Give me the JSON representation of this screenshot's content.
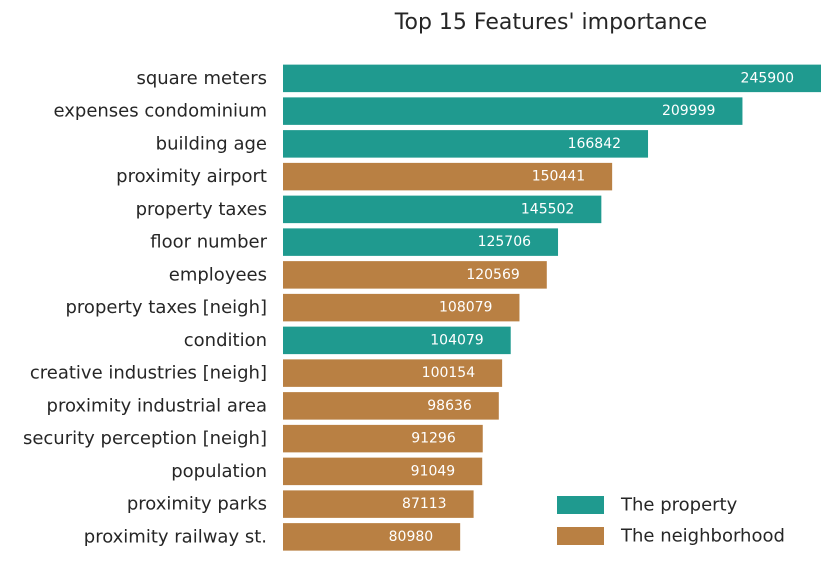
{
  "chart_data": {
    "type": "bar",
    "orientation": "horizontal",
    "title": "Top 15 Features' importance",
    "xlabel": "",
    "ylabel": "",
    "xlim": [
      0,
      245900
    ],
    "grid": false,
    "legend_position": "lower-right",
    "categories": [
      "square meters",
      "expenses condominium",
      "building age",
      "proximity airport",
      "property taxes",
      "floor number",
      "employees",
      "property taxes [neigh]",
      "condition",
      "creative industries [neigh]",
      "proximity industrial area",
      "security perception [neigh]",
      "population",
      "proximity parks",
      "proximity railway st."
    ],
    "values": [
      245900,
      209999,
      166842,
      150441,
      145502,
      125706,
      120569,
      108079,
      104079,
      100154,
      98636,
      91296,
      91049,
      87113,
      80980
    ],
    "groups": [
      "property",
      "property",
      "property",
      "neighborhood",
      "property",
      "property",
      "neighborhood",
      "neighborhood",
      "property",
      "neighborhood",
      "neighborhood",
      "neighborhood",
      "neighborhood",
      "neighborhood",
      "neighborhood"
    ],
    "series": [
      {
        "key": "property",
        "name": "The property",
        "color": "#1f9a8f"
      },
      {
        "key": "neighborhood",
        "name": "The neighborhood",
        "color": "#b98043"
      }
    ]
  }
}
